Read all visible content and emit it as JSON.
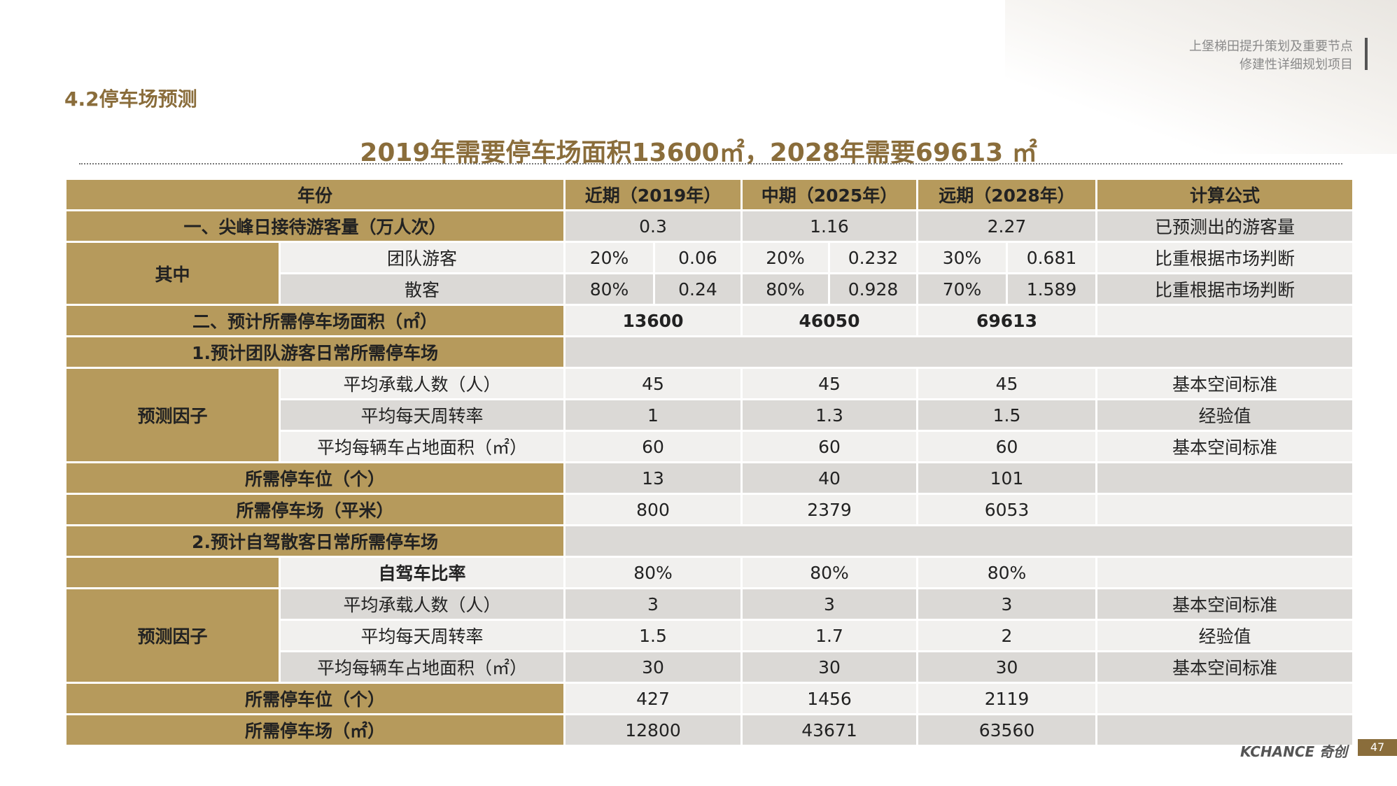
{
  "header": {
    "line1": "上堡梯田提升策划及重要节点",
    "line2": "修建性详细规划项目"
  },
  "section_heading": "4.2停车场预测",
  "headline": "2019年需要停车场面积13600㎡，2028年需要69613 ㎡",
  "table": {
    "columns": [
      "年份",
      "近期（2019年）",
      "中期（2025年）",
      "远期（2028年）",
      "计算公式"
    ],
    "row_visitors": {
      "label": "一、尖峰日接待游客量（万人次）",
      "values": [
        "0.3",
        "1.16",
        "2.27"
      ],
      "formula": "已预测出的游客量"
    },
    "group_label": "其中",
    "row_group": {
      "label": "团队游客",
      "values": [
        "20%",
        "0.06",
        "20%",
        "0.232",
        "30%",
        "0.681"
      ],
      "formula": "比重根据市场判断"
    },
    "row_fit": {
      "label": "散客",
      "values": [
        "80%",
        "0.24",
        "80%",
        "0.928",
        "70%",
        "1.589"
      ],
      "formula": "比重根据市场判断"
    },
    "row_area_total": {
      "label": "二、预计所需停车场面积（㎡）",
      "values": [
        "13600",
        "46050",
        "69613"
      ]
    },
    "section1": "1.预计团队游客日常所需停车场",
    "factor_label": "预测因子",
    "s1_rows": [
      {
        "label": "平均承载人数（人）",
        "values": [
          "45",
          "45",
          "45"
        ],
        "formula": "基本空间标准"
      },
      {
        "label": "平均每天周转率",
        "values": [
          "1",
          "1.3",
          "1.5"
        ],
        "formula": "经验值"
      },
      {
        "label": "平均每辆车占地面积（㎡）",
        "values": [
          "60",
          "60",
          "60"
        ],
        "formula": "基本空间标准"
      }
    ],
    "s1_spaces": {
      "label": "所需停车位（个）",
      "values": [
        "13",
        "40",
        "101"
      ]
    },
    "s1_lot": {
      "label": "所需停车场（平米）",
      "values": [
        "800",
        "2379",
        "6053"
      ]
    },
    "section2": "2.预计自驾散客日常所需停车场",
    "s2_selfdrive": {
      "label": "自驾车比率",
      "values": [
        "80%",
        "80%",
        "80%"
      ]
    },
    "s2_rows": [
      {
        "label": "平均承载人数（人）",
        "values": [
          "3",
          "3",
          "3"
        ],
        "formula": "基本空间标准"
      },
      {
        "label": "平均每天周转率",
        "values": [
          "1.5",
          "1.7",
          "2"
        ],
        "formula": "经验值"
      },
      {
        "label": "平均每辆车占地面积（㎡）",
        "values": [
          "30",
          "30",
          "30"
        ],
        "formula": "基本空间标准"
      }
    ],
    "s2_spaces": {
      "label": "所需停车位（个）",
      "values": [
        "427",
        "1456",
        "2119"
      ]
    },
    "s2_lot": {
      "label": "所需停车场（㎡）",
      "values": [
        "12800",
        "43671",
        "63560"
      ]
    }
  },
  "footer": {
    "logo": "KCHANCE 奇创",
    "page": "47"
  },
  "colors": {
    "gold": "#b69a5c",
    "heading": "#8a6d3b",
    "cell_light": "#f1f0ee",
    "cell_dark": "#dbd9d6"
  }
}
